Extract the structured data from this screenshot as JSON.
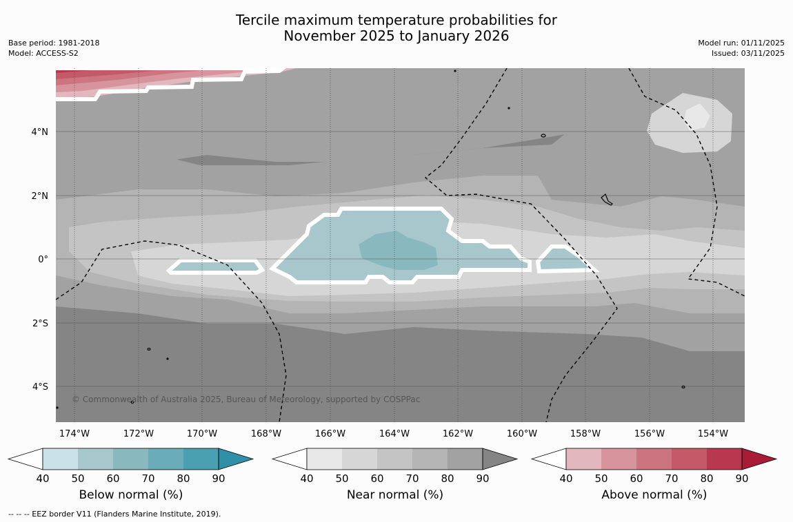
{
  "title": {
    "line1": "Tercile maximum temperature probabilities for",
    "line2": "November 2025 to January 2026"
  },
  "meta": {
    "base_period": "Base period: 1981-2018",
    "model": "Model: ACCESS-S2",
    "model_run": "Model run: 01/11/2025",
    "issued": "Issued: 03/11/2025"
  },
  "map": {
    "longitude_labels": [
      "174°W",
      "172°W",
      "170°W",
      "168°W",
      "166°W",
      "164°W",
      "162°W",
      "160°W",
      "158°W",
      "156°W",
      "154°W"
    ],
    "latitude_labels": [
      "4°N",
      "2°N",
      "0°",
      "2°S",
      "4°S"
    ],
    "copyright": "© Commonwealth of Australia 2025, Bureau of Meteorology, supported by COSPPac"
  },
  "colorbars": [
    {
      "label": "Below normal (%)",
      "ticks": [
        "40",
        "50",
        "60",
        "70",
        "80",
        "90"
      ],
      "colors": [
        "#c9e1e7",
        "#a8c7cc",
        "#8ab8bf",
        "#6aacb8",
        "#4aa0b0",
        "#3090a8"
      ]
    },
    {
      "label": "Near normal (%)",
      "ticks": [
        "40",
        "50",
        "60",
        "70",
        "80",
        "90"
      ],
      "colors": [
        "#e8e8e8",
        "#d6d6d6",
        "#c4c4c4",
        "#b4b4b4",
        "#a2a2a2",
        "#858585"
      ]
    },
    {
      "label": "Above normal (%)",
      "ticks": [
        "40",
        "50",
        "60",
        "70",
        "80",
        "90"
      ],
      "colors": [
        "#e2b8be",
        "#d8949c",
        "#cc7580",
        "#c45a68",
        "#b83850",
        "#a81c38"
      ]
    }
  ],
  "footer": "--  --  -- EEZ border V11 (Flanders Marine Institute, 2019)."
}
